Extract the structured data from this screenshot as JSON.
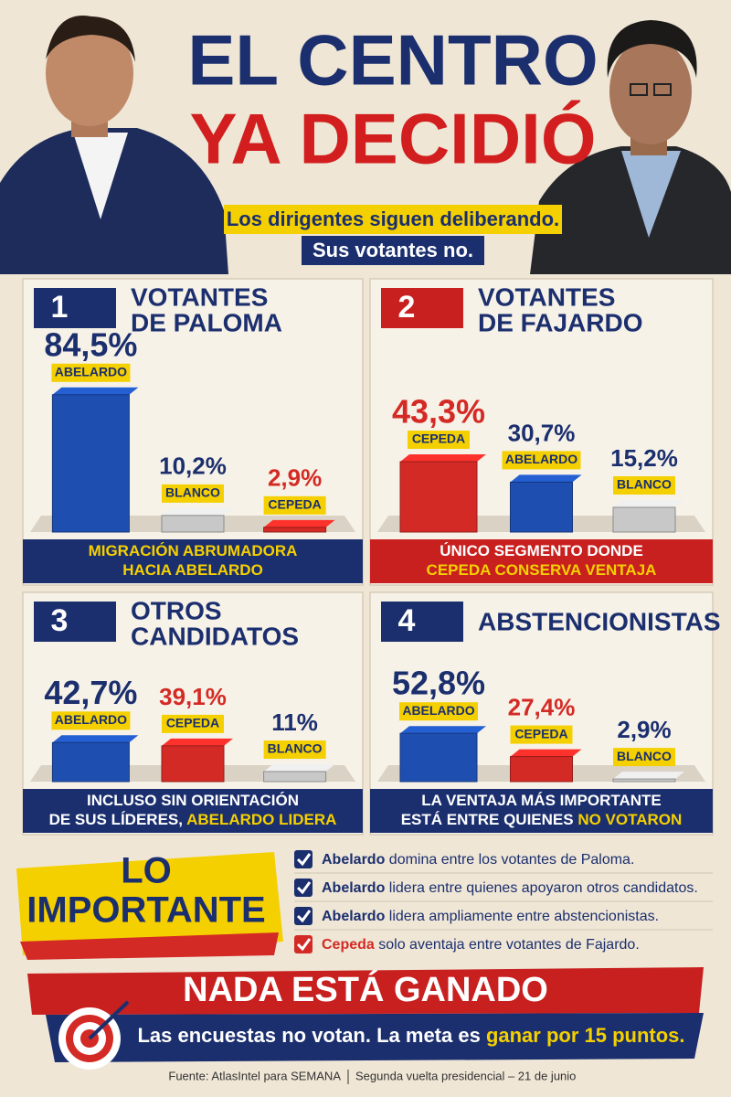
{
  "header": {
    "title": [
      "EL CENTRO",
      "YA DECIDIÓ"
    ],
    "subtitle": [
      "Los dirigentes siguen deliberando.",
      "Sus votantes no."
    ]
  },
  "chart_data": [
    {
      "type": "bar",
      "number": "1",
      "title": [
        "VOTANTES",
        "DE PALOMA"
      ],
      "categories": [
        "ABELARDO",
        "BLANCO",
        "CEPEDA"
      ],
      "values": [
        84.5,
        10.2,
        2.9
      ],
      "value_labels": [
        "84,5%",
        "10,2%",
        "2,9%"
      ],
      "colors": [
        "#1e4fb0",
        "#c8c8c8",
        "#d42a25"
      ],
      "caption_color": "#1b2f6e",
      "caption": [
        [
          {
            "text": "MIGRACIÓN ABRUMADORA",
            "color": "#f5d000"
          }
        ],
        [
          {
            "text": "HACIA ABELARDO",
            "color": "#f5d000"
          }
        ]
      ]
    },
    {
      "type": "bar",
      "number": "2",
      "title": [
        "VOTANTES",
        "DE FAJARDO"
      ],
      "categories": [
        "CEPEDA",
        "ABELARDO",
        "BLANCO"
      ],
      "values": [
        43.3,
        30.7,
        15.2
      ],
      "value_labels": [
        "43,3%",
        "30,7%",
        "15,2%"
      ],
      "colors": [
        "#d42a25",
        "#1e4fb0",
        "#c8c8c8"
      ],
      "caption_color": "#c8201f",
      "caption": [
        [
          {
            "text": "ÚNICO SEGMENTO DONDE",
            "color": "#ffffff"
          }
        ],
        [
          {
            "text": "CEPEDA CONSERVA VENTAJA",
            "color": "#f5d000"
          }
        ]
      ]
    },
    {
      "type": "bar",
      "number": "3",
      "title": [
        "OTROS",
        "CANDIDATOS"
      ],
      "categories": [
        "ABELARDO",
        "CEPEDA",
        "BLANCO"
      ],
      "values": [
        42.7,
        39.1,
        11
      ],
      "value_labels": [
        "42,7%",
        "39,1%",
        "11%"
      ],
      "colors": [
        "#1e4fb0",
        "#d42a25",
        "#c8c8c8"
      ],
      "caption_color": "#1b2f6e",
      "caption": [
        [
          {
            "text": "INCLUSO SIN ORIENTACIÓN",
            "color": "#ffffff"
          }
        ],
        [
          {
            "text": "DE SUS LÍDERES, ",
            "color": "#ffffff"
          },
          {
            "text": "ABELARDO LIDERA",
            "color": "#f5d000"
          }
        ]
      ]
    },
    {
      "type": "bar",
      "number": "4",
      "title": [
        "ABSTENCIONISTAS"
      ],
      "categories": [
        "ABELARDO",
        "CEPEDA",
        "BLANCO"
      ],
      "values": [
        52.8,
        27.4,
        2.9
      ],
      "value_labels": [
        "52,8%",
        "27,4%",
        "2,9%"
      ],
      "colors": [
        "#1e4fb0",
        "#d42a25",
        "#c8c8c8"
      ],
      "caption_color": "#1b2f6e",
      "caption": [
        [
          {
            "text": "LA VENTAJA MÁS IMPORTANTE",
            "color": "#ffffff"
          }
        ],
        [
          {
            "text": "ESTÁ ENTRE QUIENES ",
            "color": "#ffffff"
          },
          {
            "text": "NO VOTARON",
            "color": "#f5d000"
          }
        ]
      ]
    }
  ],
  "summary": {
    "title": [
      "LO",
      "IMPORTANTE"
    ],
    "items": [
      {
        "name": "Abelardo",
        "text": " domina entre los votantes de Paloma.",
        "color": "#1b2f6e"
      },
      {
        "name": "Abelardo",
        "text": " lidera entre quienes apoyaron otros candidatos.",
        "color": "#1b2f6e"
      },
      {
        "name": "Abelardo",
        "text": " lidera ampliamente entre abstencionistas.",
        "color": "#1b2f6e"
      },
      {
        "name": "Cepeda",
        "text": " solo aventaja entre votantes de Fajardo.",
        "color": "#d42a25"
      }
    ]
  },
  "footer": {
    "banner": "NADA ESTÁ GANADO",
    "tagline": [
      "Las encuestas no votan. La meta es ",
      "ganar por 15 puntos."
    ],
    "source": [
      "Fuente: AtlasIntel para SEMANA",
      "Segunda vuelta presidencial – 21 de junio"
    ]
  }
}
